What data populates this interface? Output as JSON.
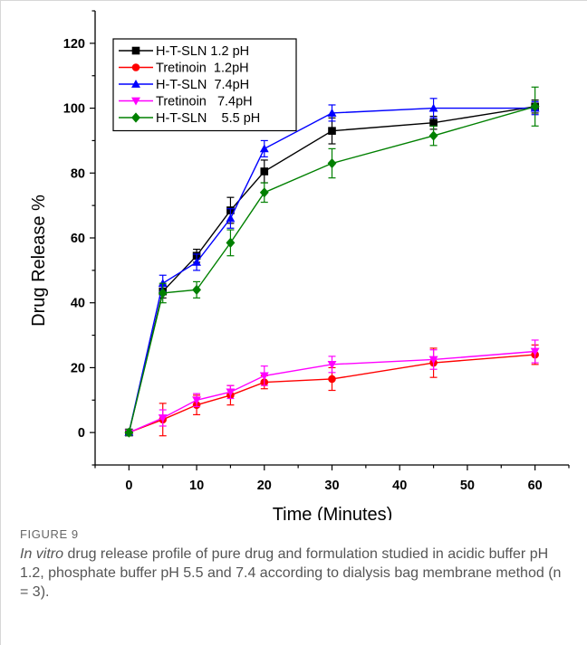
{
  "caption": {
    "label": "FIGURE 9",
    "italic_lead": "In vitro",
    "text": " drug release profile of pure drug and formulation studied in acidic buffer pH 1.2, phosphate buffer pH 5.5 and 7.4 according to dialysis bag membrane method (n = 3)."
  },
  "chart_data": {
    "type": "line",
    "title": "",
    "xlabel": "Time (Minutes)",
    "ylabel": "Drug Release %",
    "xlim": [
      -5,
      65
    ],
    "ylim": [
      -10,
      130
    ],
    "xticks": [
      0,
      10,
      20,
      30,
      40,
      50,
      60
    ],
    "yticks": [
      0,
      20,
      40,
      60,
      80,
      100,
      120
    ],
    "grid": false,
    "legend_position": "top-left",
    "x": [
      0,
      5,
      10,
      15,
      20,
      30,
      45,
      60
    ],
    "series": [
      {
        "name": "H-T-SLN 1.2 pH",
        "marker": "square",
        "color": "#000000",
        "values": [
          0,
          43.5,
          54.5,
          68.5,
          80.5,
          93,
          95.5,
          100.5
        ],
        "errors": [
          1,
          2,
          2,
          4,
          3.5,
          4,
          2,
          2
        ]
      },
      {
        "name": "Tretinoin  1.2pH",
        "marker": "circle",
        "color": "#ff0000",
        "values": [
          0,
          4,
          8.5,
          11.5,
          15.5,
          16.5,
          21.5,
          24
        ],
        "errors": [
          1,
          5,
          3,
          3,
          2,
          3.5,
          4.5,
          3
        ]
      },
      {
        "name": "H-T-SLN  7.4pH",
        "marker": "triangle-up",
        "color": "#0000ff",
        "values": [
          0,
          46,
          52.5,
          66,
          87.5,
          98.5,
          100,
          100
        ],
        "errors": [
          1,
          2.5,
          2.5,
          3,
          2.5,
          2.5,
          3,
          2
        ]
      },
      {
        "name": "Tretinoin   7.4pH",
        "marker": "triangle-down",
        "color": "#ff00ff",
        "values": [
          0,
          4.5,
          10,
          12.5,
          17.5,
          21,
          22.5,
          25
        ],
        "errors": [
          1,
          2.5,
          2,
          2,
          3,
          2.5,
          3,
          3.5
        ]
      },
      {
        "name": "H-T-SLN    5.5 pH",
        "marker": "diamond",
        "color": "#008000",
        "values": [
          0,
          43,
          44,
          58.5,
          74,
          83,
          91.5,
          100.5
        ],
        "errors": [
          1,
          3,
          2.5,
          4,
          3,
          4.5,
          3,
          6
        ]
      }
    ]
  }
}
